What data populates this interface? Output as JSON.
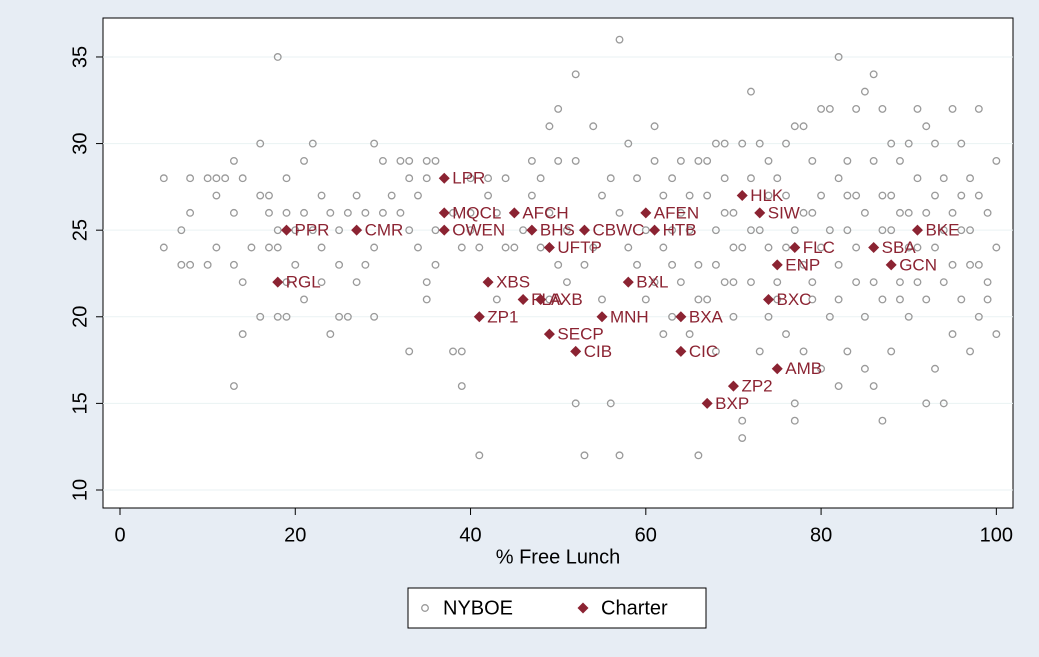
{
  "chart_data": {
    "type": "scatter",
    "xlabel": "% Free Lunch",
    "xlim": [
      -1.94,
      101.9
    ],
    "ylim": [
      8.96,
      37.25
    ],
    "xticks": [
      0,
      20,
      40,
      60,
      80,
      100
    ],
    "yticks": [
      10,
      15,
      20,
      25,
      30,
      35
    ],
    "grid": true,
    "series": [
      {
        "name": "NYBOE",
        "color": "#9a9a9a",
        "marker": "hollow-circle",
        "x": [
          5,
          5,
          7,
          7,
          8,
          8,
          8,
          10,
          10,
          11,
          11,
          11,
          12,
          13,
          13,
          13,
          13,
          14,
          14,
          14,
          15,
          16,
          16,
          16,
          17,
          17,
          17,
          18,
          18,
          18,
          18,
          19,
          19,
          19,
          19,
          20,
          20,
          21,
          21,
          21,
          22,
          22,
          23,
          23,
          23,
          24,
          24,
          25,
          25,
          25,
          26,
          26,
          27,
          27,
          28,
          28,
          29,
          29,
          29,
          30,
          30,
          31,
          32,
          32,
          33,
          33,
          33,
          33,
          34,
          34,
          35,
          35,
          35,
          35,
          36,
          36,
          36,
          38,
          38,
          39,
          39,
          39,
          40,
          40,
          40,
          41,
          41,
          42,
          42,
          43,
          43,
          44,
          44,
          45,
          46,
          47,
          47,
          48,
          48,
          49,
          49,
          49,
          50,
          50,
          50,
          51,
          51,
          52,
          52,
          52,
          53,
          53,
          54,
          54,
          55,
          55,
          56,
          56,
          57,
          57,
          57,
          58,
          58,
          59,
          59,
          60,
          60,
          61,
          61,
          61,
          62,
          62,
          62,
          63,
          63,
          63,
          64,
          64,
          64,
          65,
          65,
          66,
          66,
          66,
          67,
          67,
          67,
          68,
          68,
          68,
          69,
          69,
          69,
          70,
          70,
          70,
          71,
          71,
          71,
          71,
          72,
          72,
          72,
          73,
          73,
          73,
          74,
          74,
          74,
          75,
          75,
          76,
          76,
          76,
          77,
          77,
          77,
          77,
          78,
          78,
          78,
          79,
          79,
          79,
          80,
          80,
          80,
          80,
          81,
          81,
          82,
          82,
          82,
          82,
          83,
          83,
          83,
          84,
          84,
          84,
          85,
          85,
          85,
          85,
          86,
          86,
          86,
          86,
          87,
          87,
          87,
          87,
          88,
          88,
          88,
          89,
          89,
          89,
          90,
          90,
          90,
          91,
          91,
          91,
          92,
          92,
          92,
          93,
          93,
          93,
          94,
          94,
          94,
          95,
          95,
          95,
          96,
          96,
          96,
          97,
          97,
          97,
          98,
          98,
          98,
          99,
          99,
          100,
          100,
          100,
          63,
          65,
          66,
          68,
          69,
          70,
          72,
          74,
          75,
          76,
          78,
          79,
          81,
          82,
          83,
          84,
          86,
          87,
          88,
          89,
          90,
          91,
          92,
          93,
          94,
          95,
          96,
          97,
          98,
          99
        ],
        "values": [
          28,
          24,
          25,
          23,
          28,
          23,
          26,
          28,
          23,
          28,
          24,
          27,
          28,
          29,
          26,
          23,
          16,
          28,
          22,
          19,
          24,
          30,
          27,
          20,
          27,
          26,
          24,
          35,
          25,
          24,
          20,
          28,
          26,
          22,
          20,
          25,
          23,
          29,
          26,
          21,
          30,
          25,
          27,
          24,
          22,
          26,
          19,
          25,
          23,
          20,
          26,
          20,
          27,
          22,
          26,
          23,
          30,
          24,
          20,
          29,
          26,
          27,
          29,
          26,
          29,
          28,
          25,
          18,
          27,
          24,
          29,
          28,
          22,
          21,
          25,
          29,
          23,
          18,
          26,
          18,
          24,
          16,
          26,
          28,
          25,
          12,
          24,
          28,
          27,
          21,
          26,
          28,
          24,
          24,
          25,
          29,
          27,
          28,
          24,
          31,
          26,
          21,
          32,
          29,
          23,
          25,
          22,
          34,
          29,
          15,
          12,
          23,
          31,
          24,
          27,
          21,
          28,
          15,
          36,
          12,
          26,
          30,
          24,
          28,
          23,
          25,
          21,
          31,
          29,
          22,
          27,
          24,
          19,
          28,
          23,
          20,
          29,
          26,
          22,
          25,
          19,
          29,
          12,
          23,
          29,
          27,
          21,
          30,
          25,
          18,
          30,
          28,
          22,
          26,
          24,
          20,
          30,
          14,
          13,
          24,
          33,
          28,
          22,
          30,
          25,
          18,
          29,
          24,
          20,
          28,
          22,
          30,
          27,
          19,
          31,
          25,
          15,
          14,
          31,
          23,
          18,
          29,
          26,
          21,
          32,
          27,
          24,
          17,
          32,
          20,
          35,
          28,
          23,
          16,
          29,
          25,
          18,
          32,
          27,
          22,
          33,
          26,
          20,
          17,
          34,
          29,
          24,
          16,
          32,
          27,
          21,
          14,
          30,
          25,
          18,
          29,
          26,
          22,
          30,
          24,
          20,
          32,
          28,
          22,
          31,
          26,
          15,
          30,
          24,
          17,
          28,
          22,
          15,
          32,
          26,
          19,
          30,
          25,
          21,
          28,
          23,
          18,
          32,
          27,
          20,
          26,
          22,
          29,
          24,
          19,
          25,
          27,
          21,
          23,
          26,
          22,
          25,
          27,
          21,
          24,
          26,
          22,
          25,
          21,
          27,
          24,
          22,
          25,
          27,
          21,
          26,
          24,
          21,
          27,
          25,
          23,
          27,
          25,
          23,
          21
        ]
      },
      {
        "name": "Charter",
        "color": "#8b2332",
        "marker": "diamond",
        "x": [
          37,
          37,
          45,
          60,
          73,
          71,
          19,
          27,
          37,
          47,
          53,
          61,
          91,
          49,
          77,
          86,
          75,
          88,
          18,
          42,
          58,
          46,
          48,
          74,
          41,
          55,
          64,
          49,
          52,
          64,
          75,
          70,
          67
        ],
        "values": [
          28,
          26,
          26,
          26,
          26,
          27,
          25,
          25,
          25,
          25,
          25,
          25,
          25,
          24,
          24,
          24,
          23,
          23,
          22,
          22,
          22,
          21,
          21,
          21,
          20,
          20,
          20,
          19,
          18,
          18,
          17,
          16,
          15
        ],
        "labels": [
          "LPR",
          "MQCL",
          "AFCH",
          "AFEN",
          "SIW",
          "HLK",
          "PPR",
          "CMR",
          "OWEN",
          "BHS",
          "CBWC",
          "HTB",
          "BKE",
          "UFTP",
          "FLC",
          "SBA",
          "ENP",
          "GCN",
          "RGL",
          "XBS",
          "BXL",
          "FLA",
          "AXB",
          "BXC",
          "ZP1",
          "MNH",
          "BXA",
          "SECP",
          "CIB",
          "CIC",
          "AMB",
          "ZP2",
          "BXP"
        ]
      }
    ]
  }
}
